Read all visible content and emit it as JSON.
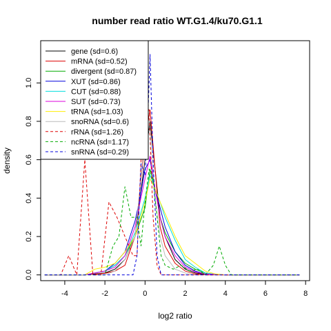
{
  "chart_data": {
    "type": "line",
    "title": "number read ratio WT.G1.4/ku70.G1.1",
    "xlabel": "log2 ratio",
    "ylabel": "density",
    "xlim": [
      -5.2,
      8.2
    ],
    "ylim": [
      -0.03,
      1.22
    ],
    "x_ticks": [
      -4,
      -2,
      0,
      2,
      4,
      6,
      8
    ],
    "y_ticks": [
      0.0,
      0.2,
      0.4,
      0.6,
      0.8,
      1.0
    ],
    "x_tick_labels": [
      "-4",
      "-2",
      "0",
      "2",
      "4",
      "6",
      "8"
    ],
    "y_tick_labels": [
      "0.0",
      "0.2",
      "0.4",
      "0.6",
      "0.8",
      "1.0"
    ],
    "grid": false,
    "legend_position": "top-left",
    "series": [
      {
        "name": "gene (sd=0.6)",
        "color": "#000000",
        "dash": "solid",
        "points": [
          [
            -5,
            0
          ],
          [
            -3,
            0
          ],
          [
            -2.5,
            0.005
          ],
          [
            -2,
            0.01
          ],
          [
            -1.5,
            0.03
          ],
          [
            -1,
            0.08
          ],
          [
            -0.5,
            0.2
          ],
          [
            -0.25,
            0.4
          ],
          [
            0,
            0.6
          ],
          [
            0.25,
            0.8
          ],
          [
            0.5,
            0.55
          ],
          [
            0.75,
            0.3
          ],
          [
            1,
            0.2
          ],
          [
            1.5,
            0.08
          ],
          [
            2,
            0.03
          ],
          [
            2.5,
            0.01
          ],
          [
            3,
            0.003
          ],
          [
            4,
            0
          ],
          [
            7.7,
            0
          ]
        ]
      },
      {
        "name": "mRNA (sd=0.52)",
        "color": "#dd0000",
        "dash": "solid",
        "points": [
          [
            -5,
            0
          ],
          [
            -3,
            0
          ],
          [
            -2.5,
            0.003
          ],
          [
            -2,
            0.008
          ],
          [
            -1.5,
            0.02
          ],
          [
            -1,
            0.05
          ],
          [
            -0.5,
            0.2
          ],
          [
            -0.25,
            0.45
          ],
          [
            0,
            0.7
          ],
          [
            0.25,
            0.86
          ],
          [
            0.5,
            0.55
          ],
          [
            0.75,
            0.25
          ],
          [
            1,
            0.15
          ],
          [
            1.5,
            0.06
          ],
          [
            2,
            0.02
          ],
          [
            2.5,
            0.005
          ],
          [
            3,
            0
          ],
          [
            7.7,
            0
          ]
        ]
      },
      {
        "name": "divergent (sd=0.87)",
        "color": "#00aa00",
        "dash": "solid",
        "points": [
          [
            -5,
            0
          ],
          [
            -3,
            0
          ],
          [
            -2.5,
            0.01
          ],
          [
            -2,
            0.02
          ],
          [
            -1.5,
            0.05
          ],
          [
            -1,
            0.1
          ],
          [
            -0.5,
            0.2
          ],
          [
            0,
            0.35
          ],
          [
            0.25,
            0.55
          ],
          [
            0.5,
            0.45
          ],
          [
            0.75,
            0.3
          ],
          [
            1,
            0.22
          ],
          [
            1.5,
            0.12
          ],
          [
            2,
            0.06
          ],
          [
            2.5,
            0.03
          ],
          [
            3,
            0.01
          ],
          [
            3.5,
            0.003
          ],
          [
            4,
            0
          ],
          [
            7.7,
            0
          ]
        ]
      },
      {
        "name": "XUT (sd=0.86)",
        "color": "#0000dd",
        "dash": "solid",
        "points": [
          [
            -5,
            0
          ],
          [
            -3,
            0
          ],
          [
            -2.5,
            0.01
          ],
          [
            -2,
            0.02
          ],
          [
            -1.5,
            0.06
          ],
          [
            -1,
            0.12
          ],
          [
            -0.5,
            0.28
          ],
          [
            -0.25,
            0.4
          ],
          [
            0,
            0.55
          ],
          [
            0.25,
            0.6
          ],
          [
            0.5,
            0.45
          ],
          [
            0.75,
            0.35
          ],
          [
            1,
            0.25
          ],
          [
            1.5,
            0.12
          ],
          [
            2,
            0.05
          ],
          [
            2.5,
            0.02
          ],
          [
            3,
            0.005
          ],
          [
            4,
            0
          ],
          [
            7.7,
            0
          ]
        ]
      },
      {
        "name": "CUT (sd=0.88)",
        "color": "#00dddd",
        "dash": "solid",
        "points": [
          [
            -5,
            0
          ],
          [
            -3,
            0
          ],
          [
            -2.5,
            0.01
          ],
          [
            -2,
            0.02
          ],
          [
            -1.5,
            0.05
          ],
          [
            -1,
            0.1
          ],
          [
            -0.5,
            0.22
          ],
          [
            0,
            0.4
          ],
          [
            0.25,
            0.52
          ],
          [
            0.5,
            0.45
          ],
          [
            0.75,
            0.38
          ],
          [
            1,
            0.3
          ],
          [
            1.5,
            0.18
          ],
          [
            2,
            0.08
          ],
          [
            2.5,
            0.04
          ],
          [
            3,
            0.01
          ],
          [
            3.5,
            0.003
          ],
          [
            4,
            0
          ],
          [
            7.7,
            0
          ]
        ]
      },
      {
        "name": "SUT (sd=0.73)",
        "color": "#dd00dd",
        "dash": "solid",
        "points": [
          [
            -5,
            0
          ],
          [
            -3,
            0
          ],
          [
            -2.5,
            0.01
          ],
          [
            -2,
            0.02
          ],
          [
            -1.5,
            0.04
          ],
          [
            -1,
            0.1
          ],
          [
            -0.5,
            0.25
          ],
          [
            -0.25,
            0.38
          ],
          [
            0,
            0.5
          ],
          [
            0.25,
            0.62
          ],
          [
            0.5,
            0.45
          ],
          [
            0.75,
            0.3
          ],
          [
            1,
            0.2
          ],
          [
            1.5,
            0.1
          ],
          [
            2,
            0.04
          ],
          [
            2.5,
            0.015
          ],
          [
            3,
            0.005
          ],
          [
            4,
            0
          ],
          [
            7.7,
            0
          ]
        ]
      },
      {
        "name": "tRNA (sd=1.03)",
        "color": "#ffee00",
        "dash": "solid",
        "points": [
          [
            -5,
            0
          ],
          [
            -3,
            0
          ],
          [
            -2.5,
            0.03
          ],
          [
            -2,
            0.04
          ],
          [
            -1.5,
            0.06
          ],
          [
            -1,
            0.12
          ],
          [
            -0.5,
            0.2
          ],
          [
            0,
            0.38
          ],
          [
            0.25,
            0.5
          ],
          [
            0.5,
            0.45
          ],
          [
            0.75,
            0.38
          ],
          [
            1,
            0.32
          ],
          [
            1.5,
            0.2
          ],
          [
            2,
            0.1
          ],
          [
            2.5,
            0.06
          ],
          [
            3,
            0.02
          ],
          [
            3.5,
            0.005
          ],
          [
            4,
            0
          ],
          [
            7.7,
            0
          ]
        ]
      },
      {
        "name": "snoRNA (sd=0.6)",
        "color": "#bbbbbb",
        "dash": "solid",
        "points": [
          [
            -5,
            0
          ],
          [
            -2,
            0
          ],
          [
            -1.5,
            0.02
          ],
          [
            -1,
            0.08
          ],
          [
            -0.5,
            0.2
          ],
          [
            -0.25,
            0.45
          ],
          [
            0,
            0.75
          ],
          [
            0.25,
            0.75
          ],
          [
            0.5,
            0.4
          ],
          [
            0.75,
            0.2
          ],
          [
            1,
            0.1
          ],
          [
            1.5,
            0.03
          ],
          [
            2,
            0.01
          ],
          [
            2.5,
            0
          ],
          [
            7.7,
            0
          ]
        ]
      },
      {
        "name": "rRNA (sd=1.26)",
        "color": "#dd0000",
        "dash": "dashed",
        "points": [
          [
            -5,
            0
          ],
          [
            -4.2,
            0
          ],
          [
            -3.8,
            0.1
          ],
          [
            -3.4,
            0
          ],
          [
            -3,
            0.6
          ],
          [
            -2.6,
            0
          ],
          [
            -2.2,
            0
          ],
          [
            -1.8,
            0.38
          ],
          [
            -1.4,
            0.3
          ],
          [
            -1,
            0.2
          ],
          [
            -0.6,
            0.1
          ],
          [
            -0.4,
            0.1
          ],
          [
            -0.2,
            0.6
          ],
          [
            0,
            0.87
          ],
          [
            0.2,
            0.86
          ],
          [
            0.4,
            0.3
          ],
          [
            0.6,
            0.05
          ],
          [
            0.8,
            0
          ],
          [
            7.7,
            0
          ]
        ]
      },
      {
        "name": "ncRNA (sd=1.17)",
        "color": "#00aa00",
        "dash": "dashed",
        "points": [
          [
            -5,
            0
          ],
          [
            -2,
            0
          ],
          [
            -1.6,
            0.15
          ],
          [
            -1.3,
            0.2
          ],
          [
            -1,
            0.46
          ],
          [
            -0.7,
            0.3
          ],
          [
            -0.4,
            0.3
          ],
          [
            -0.2,
            0.15
          ],
          [
            0,
            0.38
          ],
          [
            0.2,
            0.55
          ],
          [
            0.4,
            0.5
          ],
          [
            0.6,
            0.3
          ],
          [
            0.8,
            0.1
          ],
          [
            1,
            0.05
          ],
          [
            1.4,
            0.03
          ],
          [
            1.8,
            0.05
          ],
          [
            2.2,
            0.02
          ],
          [
            2.6,
            0.03
          ],
          [
            3,
            0
          ],
          [
            3.4,
            0.05
          ],
          [
            3.7,
            0.15
          ],
          [
            4,
            0.05
          ],
          [
            4.3,
            0
          ],
          [
            7.7,
            0
          ]
        ]
      },
      {
        "name": "snRNA (sd=0.29)",
        "color": "#0000dd",
        "dash": "dashed",
        "points": [
          [
            -5,
            0
          ],
          [
            -0.6,
            0
          ],
          [
            -0.4,
            0.1
          ],
          [
            -0.2,
            0.58
          ],
          [
            0,
            0.52
          ],
          [
            0.1,
            0.7
          ],
          [
            0.25,
            1.15
          ],
          [
            0.4,
            0.6
          ],
          [
            0.6,
            0.1
          ],
          [
            0.8,
            0
          ],
          [
            7.7,
            0
          ]
        ]
      }
    ]
  }
}
